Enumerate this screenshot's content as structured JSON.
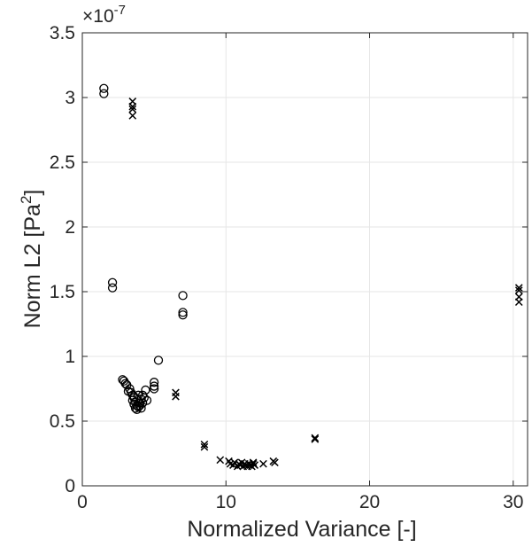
{
  "chart_data": {
    "type": "scatter",
    "xlabel": "Normalized Variance [-]",
    "ylabel_main": "Norm L2 [Pa",
    "ylabel_sup": "2",
    "ylabel_end": "]",
    "y_exponent_prefix": "×10",
    "y_exponent": "-7",
    "xlim": [
      0,
      31
    ],
    "ylim": [
      0,
      3.5e-07
    ],
    "x_ticks": [
      0,
      10,
      20,
      30
    ],
    "x_tick_labels": [
      "0",
      "10",
      "20",
      "30"
    ],
    "y_ticks": [
      0,
      5e-08,
      1e-07,
      1.5e-07,
      2e-07,
      2.5e-07,
      3e-07,
      3.5e-07
    ],
    "y_tick_labels": [
      "0",
      "0.5",
      "1",
      "1.5",
      "2",
      "2.5",
      "3",
      "3.5"
    ],
    "grid": true,
    "series": [
      {
        "marker": "circle",
        "points": [
          [
            1.5,
            3.07e-07
          ],
          [
            1.5,
            3.03e-07
          ],
          [
            2.1,
            1.57e-07
          ],
          [
            2.1,
            1.53e-07
          ],
          [
            7.0,
            1.47e-07
          ],
          [
            7.0,
            1.34e-07
          ],
          [
            7.0,
            1.32e-07
          ],
          [
            5.3,
            9.7e-08
          ],
          [
            2.8,
            8.2e-08
          ],
          [
            2.9,
            8.1e-08
          ],
          [
            3.0,
            7.9e-08
          ],
          [
            3.1,
            7.8e-08
          ],
          [
            3.3,
            7.5e-08
          ],
          [
            3.2,
            7.3e-08
          ],
          [
            3.4,
            7.2e-08
          ],
          [
            3.5,
            7e-08
          ],
          [
            3.6,
            6.8e-08
          ],
          [
            3.5,
            6.6e-08
          ],
          [
            3.7,
            6.5e-08
          ],
          [
            3.6,
            6.3e-08
          ],
          [
            3.8,
            6.2e-08
          ],
          [
            3.7,
            6e-08
          ],
          [
            3.9,
            6.1e-08
          ],
          [
            4.0,
            6.4e-08
          ],
          [
            4.1,
            6.7e-08
          ],
          [
            4.2,
            7e-08
          ],
          [
            4.3,
            6.8e-08
          ],
          [
            4.0,
            6.2e-08
          ],
          [
            3.8,
            5.9e-08
          ],
          [
            4.1,
            6e-08
          ],
          [
            4.4,
            7.4e-08
          ],
          [
            4.5,
            6.6e-08
          ],
          [
            3.9,
            7e-08
          ],
          [
            3.6,
            6.9e-08
          ],
          [
            4.2,
            6.4e-08
          ],
          [
            5.0,
            8e-08
          ],
          [
            5.0,
            7.7e-08
          ],
          [
            5.0,
            7.5e-08
          ]
        ]
      },
      {
        "marker": "x",
        "points": [
          [
            3.5,
            2.97e-07
          ],
          [
            3.5,
            2.93e-07
          ],
          [
            3.5,
            2.91e-07
          ],
          [
            3.5,
            2.86e-07
          ],
          [
            30.4,
            1.53e-07
          ],
          [
            30.4,
            1.51e-07
          ],
          [
            30.4,
            1.46e-07
          ],
          [
            30.4,
            1.42e-07
          ],
          [
            6.5,
            7.2e-08
          ],
          [
            6.5,
            6.9e-08
          ],
          [
            8.5,
            3.2e-08
          ],
          [
            8.5,
            3e-08
          ],
          [
            16.2,
            3.7e-08
          ],
          [
            16.2,
            3.6e-08
          ],
          [
            9.6,
            2e-08
          ],
          [
            10.2,
            1.9e-08
          ],
          [
            10.3,
            1.7e-08
          ],
          [
            10.5,
            1.6e-08
          ],
          [
            10.8,
            1.5e-08
          ],
          [
            10.9,
            1.7e-08
          ],
          [
            11.0,
            1.6e-08
          ],
          [
            11.2,
            1.5e-08
          ],
          [
            11.3,
            1.7e-08
          ],
          [
            11.4,
            1.6e-08
          ],
          [
            11.5,
            1.5e-08
          ],
          [
            11.6,
            1.7e-08
          ],
          [
            11.7,
            1.6e-08
          ],
          [
            11.8,
            1.5e-08
          ],
          [
            11.9,
            1.7e-08
          ],
          [
            12.0,
            1.6e-08
          ],
          [
            12.6,
            1.7e-08
          ],
          [
            13.3,
            1.9e-08
          ],
          [
            13.4,
            1.8e-08
          ],
          [
            10.6,
            1.8e-08
          ],
          [
            11.1,
            1.8e-08
          ],
          [
            11.9,
            1.8e-08
          ]
        ]
      }
    ]
  }
}
